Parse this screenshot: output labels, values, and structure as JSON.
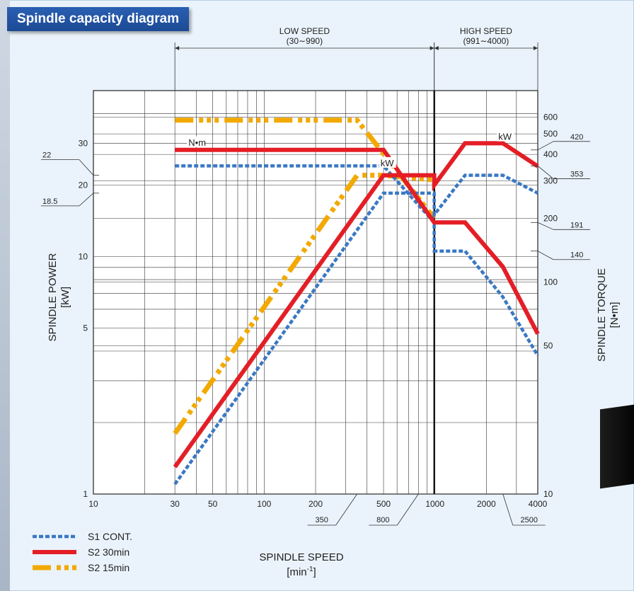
{
  "title": "Spindle capacity diagram",
  "chart_data": {
    "type": "line",
    "title": "Spindle capacity diagram",
    "xlabel": "SPINDLE  SPEED",
    "xunit_base": "[min",
    "xunit_sup": "-1",
    "xunit_end": "]",
    "ylabel_left": "SPINDLE  POWER",
    "yunit_left": "[kW]",
    "ylabel_right": "SPINDLE  TORQUE",
    "yunit_right": "[N•m]",
    "xscale": "log",
    "yscale_left": "log",
    "yscale_right": "log",
    "xlim": [
      10,
      4000
    ],
    "ylim_left": [
      1,
      50
    ],
    "ylim_right": [
      10,
      800
    ],
    "x_ticks": [
      "10",
      "30",
      "50",
      "100",
      "200",
      "500",
      "1000",
      "2000",
      "4000"
    ],
    "x_tick_values": [
      10,
      30,
      50,
      100,
      200,
      500,
      1000,
      2000,
      4000
    ],
    "y_left_ticks": [
      "1",
      "5",
      "10",
      "20",
      "30"
    ],
    "y_left_values": [
      1,
      5,
      10,
      20,
      30
    ],
    "y_right_ticks": [
      "10",
      "50",
      "100",
      "200",
      "300",
      "400",
      "500",
      "600"
    ],
    "y_right_values": [
      10,
      50,
      100,
      200,
      300,
      400,
      500,
      600
    ],
    "ranges": [
      {
        "label": "LOW  SPEED",
        "sub": "(30∼990)",
        "from": 30,
        "to": 990
      },
      {
        "label": "HIGH  SPEED",
        "sub": "(991∼4000)",
        "from": 991,
        "to": 4000
      }
    ],
    "callouts_left": [
      {
        "label": "22",
        "value": 22
      },
      {
        "label": "18.5",
        "value": 18.5
      }
    ],
    "callouts_right": [
      {
        "label": "420",
        "value": 420
      },
      {
        "label": "353",
        "value": 353
      },
      {
        "label": "191",
        "value": 191
      },
      {
        "label": "140",
        "value": 140
      }
    ],
    "callouts_bottom": [
      {
        "label": "350",
        "value": 350
      },
      {
        "label": "800",
        "value": 800
      },
      {
        "label": "2500",
        "value": 2500
      }
    ],
    "annotations": [
      {
        "text": "N•m",
        "x": 36,
        "y_torque": 440
      },
      {
        "text": "kW",
        "x": 480,
        "y_power": 24
      },
      {
        "text": "kW",
        "x": 2350,
        "y_power": 31
      }
    ],
    "legend_position": "bottom-left",
    "series": [
      {
        "name": "S1 CONT.",
        "color": "#3a78c4",
        "style": "dotted",
        "kind": "power",
        "x": [
          30,
          500,
          990,
          991,
          1500,
          2500,
          4000
        ],
        "y": [
          1.1,
          18.5,
          18.5,
          15,
          22,
          22,
          18.5
        ]
      },
      {
        "name": "S2 30min",
        "color": "#e41e26",
        "style": "solid",
        "kind": "power",
        "x": [
          30,
          500,
          990,
          991,
          1500,
          2500,
          4000
        ],
        "y": [
          1.3,
          22,
          22,
          20,
          30,
          30,
          24
        ]
      },
      {
        "name": "S2 15min",
        "color": "#f2a900",
        "style": "dashdot",
        "kind": "power",
        "x": [
          30,
          350,
          500,
          990
        ],
        "y": [
          1.8,
          22,
          22,
          21
        ]
      },
      {
        "name": "S1 CONT.",
        "color": "#3a78c4",
        "style": "dotted",
        "kind": "torque",
        "x": [
          30,
          500,
          990,
          991,
          1500,
          2500,
          4000
        ],
        "y": [
          353,
          353,
          191,
          140,
          140,
          85,
          45
        ]
      },
      {
        "name": "S2 30min",
        "color": "#e41e26",
        "style": "solid",
        "kind": "torque",
        "x": [
          30,
          500,
          990,
          991,
          1500,
          2500,
          4000
        ],
        "y": [
          420,
          420,
          191,
          191,
          191,
          118,
          57
        ]
      },
      {
        "name": "S2 15min",
        "color": "#f2a900",
        "style": "dashdot",
        "kind": "torque",
        "x": [
          30,
          350,
          990
        ],
        "y": [
          580,
          580,
          200
        ]
      }
    ]
  },
  "legend": [
    {
      "label": "S1 CONT.",
      "color": "#3a78c4",
      "style": "dotted"
    },
    {
      "label": "S2 30min",
      "color": "#e41e26",
      "style": "solid"
    },
    {
      "label": "S2 15min",
      "color": "#f2a900",
      "style": "dashdot"
    }
  ]
}
